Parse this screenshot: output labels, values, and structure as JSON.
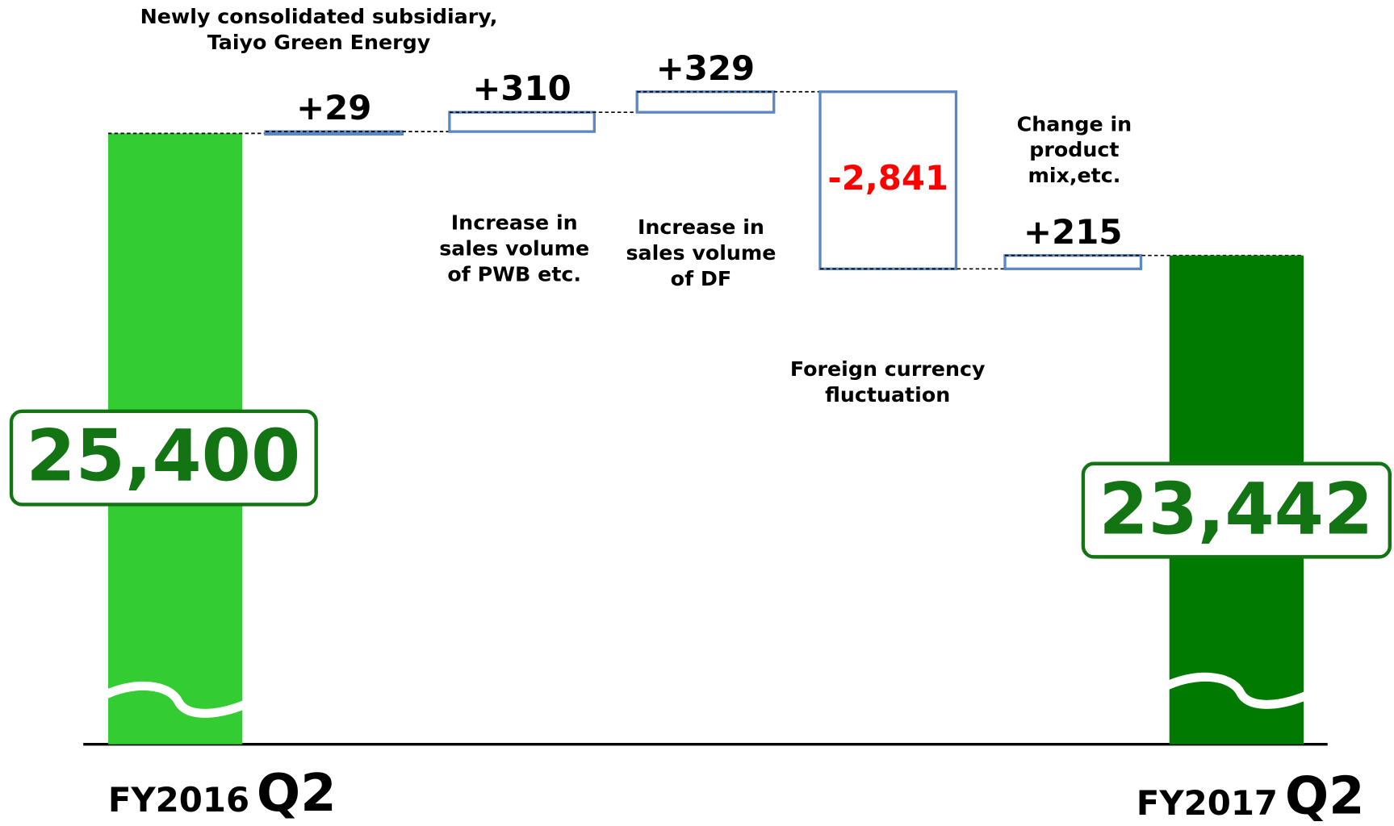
{
  "chart_data": {
    "type": "waterfall",
    "ylim": [
      15600,
      26400
    ],
    "start": {
      "label": [
        "FY2016",
        "Q2"
      ],
      "value": 25400,
      "value_label": "25,400",
      "color": "#33cc33"
    },
    "steps": {
      "values": [
        29,
        310,
        329,
        -2841,
        215
      ],
      "value_labels": [
        "+29",
        "+310",
        "+329",
        "-2,841",
        "+215"
      ],
      "notes": [
        [
          "Newly consolidated subsidiary,",
          "Taiyo Green Energy"
        ],
        [
          "Increase in",
          "sales volume",
          "of PWB etc."
        ],
        [
          "Increase in",
          "sales volume",
          "of DF"
        ],
        [
          "Foreign currency",
          "fluctuation"
        ],
        [
          "Change in",
          "product",
          "mix,etc."
        ]
      ],
      "stroke": "#5b87c4",
      "negative_label_color": "#ff0000"
    },
    "end": {
      "label": [
        "FY2017",
        "Q2"
      ],
      "value": 23442,
      "value_label": "23,442",
      "color": "#007a00"
    },
    "total_label_color": "#137413"
  }
}
